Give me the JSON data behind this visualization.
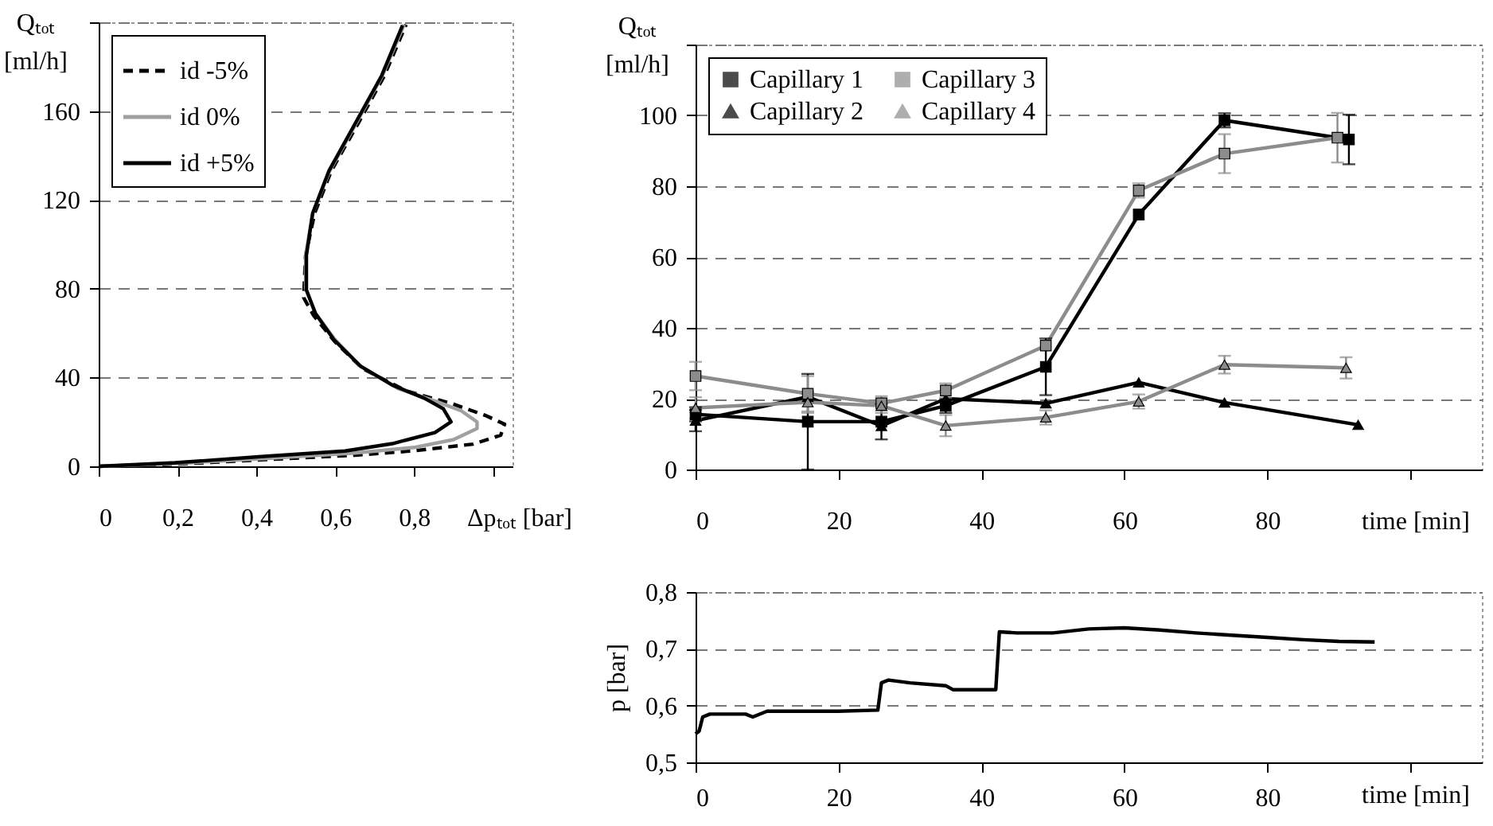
{
  "chart_data": [
    {
      "type": "line",
      "xlabel": "Δpₜₒₜ [bar]",
      "ylabel": "Qₜₒₜ [ml/h]",
      "xlim": [
        0,
        1.05
      ],
      "ylim": [
        0,
        200
      ],
      "xticks": [
        0,
        {
          "value": 0.2,
          "label": "0,2"
        },
        {
          "value": 0.4,
          "label": "0,4"
        },
        {
          "value": 0.6,
          "label": "0,6"
        },
        {
          "value": 0.8,
          "label": "0,8"
        },
        {
          "value": 1.0,
          "label": null
        }
      ],
      "yticks": [
        0,
        40,
        80,
        120,
        160,
        {
          "value": 200,
          "label": null
        }
      ],
      "grid": "y",
      "legend": "top left",
      "series": [
        {
          "name": "id -5%",
          "color": "#000000",
          "line_style": "dashed",
          "x": [
            0,
            0.2,
            0.42,
            0.65,
            0.8,
            0.95,
            1.02,
            1.03,
            0.98,
            0.9,
            0.78,
            0.67,
            0.6,
            0.545,
            0.52,
            0.525,
            0.548,
            0.59,
            0.66,
            0.725,
            0.78
          ],
          "values": [
            0,
            1,
            3,
            5,
            7,
            10,
            14,
            19,
            23,
            28,
            34,
            44,
            56,
            68,
            76,
            95,
            114,
            133,
            155,
            176,
            199
          ]
        },
        {
          "name": "id 0%",
          "color": "#a0a0a0",
          "line_style": "solid",
          "x": [
            0,
            0.2,
            0.42,
            0.65,
            0.8,
            0.9,
            0.96,
            0.96,
            0.92,
            0.86,
            0.76,
            0.665,
            0.6,
            0.55,
            0.525,
            0.525,
            0.543,
            0.586,
            0.655,
            0.72,
            0.775
          ],
          "values": [
            0,
            1.3,
            3.5,
            6,
            8.5,
            12,
            17,
            20,
            25,
            29,
            35,
            45,
            57,
            69,
            80,
            95,
            114,
            133,
            155,
            176,
            199
          ]
        },
        {
          "name": "id +5%",
          "color": "#000000",
          "line_style": "solid",
          "x": [
            0,
            0.194,
            0.42,
            0.625,
            0.745,
            0.853,
            0.894,
            0.874,
            0.826,
            0.745,
            0.665,
            0.597,
            0.55,
            0.527,
            0.527,
            0.543,
            0.584,
            0.651,
            0.718,
            0.771
          ],
          "values": [
            0,
            1.6,
            4.5,
            6.9,
            10.2,
            15.2,
            20,
            26,
            30.7,
            36.6,
            45,
            57,
            68.8,
            79.5,
            95,
            114,
            133,
            154.5,
            176,
            198.6
          ]
        }
      ]
    },
    {
      "type": "line",
      "xlabel": "time [min]",
      "ylabel": "Qₜₒₜ [ml/h]",
      "xlim": [
        0,
        110
      ],
      "ylim": [
        0,
        120
      ],
      "xticks": [
        0,
        20,
        40,
        60,
        80,
        {
          "value": 100,
          "label": null
        }
      ],
      "yticks": [
        0,
        20,
        40,
        60,
        80,
        100,
        {
          "value": 120,
          "label": null
        }
      ],
      "grid": "y",
      "legend": "top left",
      "series": [
        {
          "name": "Capillary 1",
          "color": "#000000",
          "marker": "square",
          "x": [
            0,
            15.7,
            26,
            35,
            49,
            62,
            74,
            91.4
          ],
          "values": [
            15.6,
            13.5,
            13.5,
            18,
            29,
            72,
            98.6,
            93.2
          ],
          "errors": [
            2,
            13.5,
            5,
            2,
            8,
            null,
            2,
            7
          ]
        },
        {
          "name": "Capillary 2",
          "color": "#000000",
          "marker": "triangle",
          "x": [
            0,
            15.7,
            26,
            35,
            49,
            62,
            74,
            92.7
          ],
          "values": [
            13.8,
            20.5,
            12.3,
            20,
            18.7,
            24.6,
            18.9,
            12.6
          ],
          "errors": [
            3,
            null,
            null,
            null,
            null,
            null,
            null,
            null
          ]
        },
        {
          "name": "Capillary 3",
          "color": "#8c8c8c",
          "marker": "square",
          "x": [
            0,
            15.7,
            26,
            35,
            49,
            62,
            74,
            89.8
          ],
          "values": [
            26.4,
            21.4,
            18.7,
            22.3,
            35,
            78.8,
            89.2,
            93.7
          ],
          "errors": [
            4,
            5,
            2,
            2,
            null,
            2,
            5.5,
            7
          ]
        },
        {
          "name": "Capillary 4",
          "color": "#8c8c8c",
          "marker": "triangle",
          "x": [
            0,
            15.7,
            26,
            35,
            49,
            62,
            74,
            91
          ],
          "values": [
            17.4,
            19,
            18,
            12.4,
            14.7,
            19.2,
            29.6,
            28.7
          ],
          "errors": [
            3,
            3,
            2,
            3,
            2,
            2,
            2.5,
            3
          ]
        }
      ]
    },
    {
      "type": "line",
      "xlabel": "time [min]",
      "ylabel": "p [bar]",
      "xlim": [
        0,
        110
      ],
      "ylim": [
        0.5,
        0.8
      ],
      "xticks": [
        0,
        20,
        40,
        60,
        80,
        {
          "value": 100,
          "label": null
        }
      ],
      "yticks": [
        {
          "value": 0.5,
          "label": "0,5"
        },
        {
          "value": 0.6,
          "label": "0,6"
        },
        {
          "value": 0.7,
          "label": "0,7"
        },
        {
          "value": 0.8,
          "label": "0,8"
        }
      ],
      "grid": "y",
      "series": [
        {
          "color": "#000000",
          "x": [
            0,
            0.5,
            1,
            2,
            7,
            8,
            10,
            20,
            25.5,
            26,
            27,
            30,
            35,
            36,
            42,
            42.5,
            45,
            50,
            55,
            60,
            65,
            70,
            75,
            80,
            85,
            90,
            95
          ],
          "values": [
            0.55,
            0.555,
            0.58,
            0.585,
            0.585,
            0.58,
            0.59,
            0.59,
            0.592,
            0.64,
            0.645,
            0.64,
            0.635,
            0.628,
            0.628,
            0.73,
            0.728,
            0.728,
            0.735,
            0.737,
            0.733,
            0.728,
            0.724,
            0.72,
            0.716,
            0.713,
            0.712
          ]
        }
      ]
    }
  ]
}
